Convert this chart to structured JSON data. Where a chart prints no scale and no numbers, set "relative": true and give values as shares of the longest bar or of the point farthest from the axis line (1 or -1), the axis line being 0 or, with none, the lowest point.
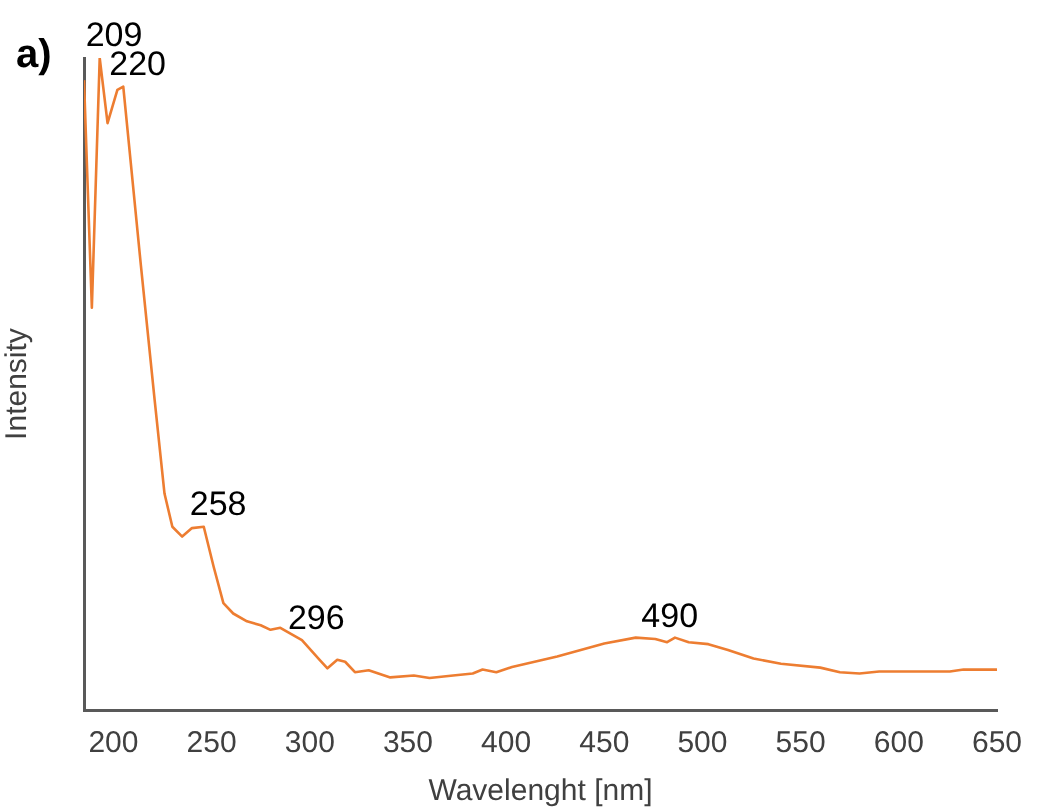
{
  "chart_data": {
    "type": "line",
    "xlabel": "Wavelenght [nm]",
    "ylabel": "Intensity",
    "relative": true,
    "grid": false,
    "legend": false,
    "marker": "none",
    "line_style": "solid",
    "xlim": [
      185,
      650
    ],
    "xticks": [
      200,
      250,
      300,
      350,
      400,
      450,
      500,
      550,
      600,
      650
    ],
    "annotations": [
      "a)",
      {
        "text": "209",
        "x": 193,
        "y": 1.0
      },
      {
        "text": "220",
        "x": 205,
        "y": 0.956
      },
      {
        "text": "258",
        "x": 246,
        "y": 0.281
      },
      {
        "text": "296",
        "x": 296,
        "y": 0.107
      },
      {
        "text": "490",
        "x": 476,
        "y": 0.109
      }
    ],
    "series": [
      {
        "color": "#ed7d31",
        "x": [
          185,
          189,
          193,
          197,
          202,
          205,
          214,
          221,
          226,
          230,
          235,
          240,
          246,
          251,
          256,
          261,
          268,
          275,
          280,
          285,
          296,
          305,
          309,
          314,
          318,
          323,
          330,
          341,
          353,
          361,
          373,
          383,
          388,
          395,
          403,
          426,
          450,
          466,
          476,
          482,
          486,
          493,
          503,
          513,
          526,
          540,
          560,
          570,
          580,
          590,
          626,
          633,
          650
        ],
        "values": [
          0.966,
          0.617,
          1.0,
          0.9,
          0.951,
          0.956,
          0.681,
          0.475,
          0.332,
          0.281,
          0.266,
          0.279,
          0.281,
          0.22,
          0.164,
          0.148,
          0.136,
          0.13,
          0.123,
          0.126,
          0.107,
          0.077,
          0.064,
          0.077,
          0.074,
          0.058,
          0.061,
          0.05,
          0.053,
          0.049,
          0.053,
          0.056,
          0.062,
          0.058,
          0.066,
          0.082,
          0.102,
          0.111,
          0.109,
          0.104,
          0.111,
          0.104,
          0.101,
          0.092,
          0.079,
          0.071,
          0.065,
          0.058,
          0.056,
          0.059,
          0.059,
          0.062,
          0.062
        ]
      }
    ]
  }
}
